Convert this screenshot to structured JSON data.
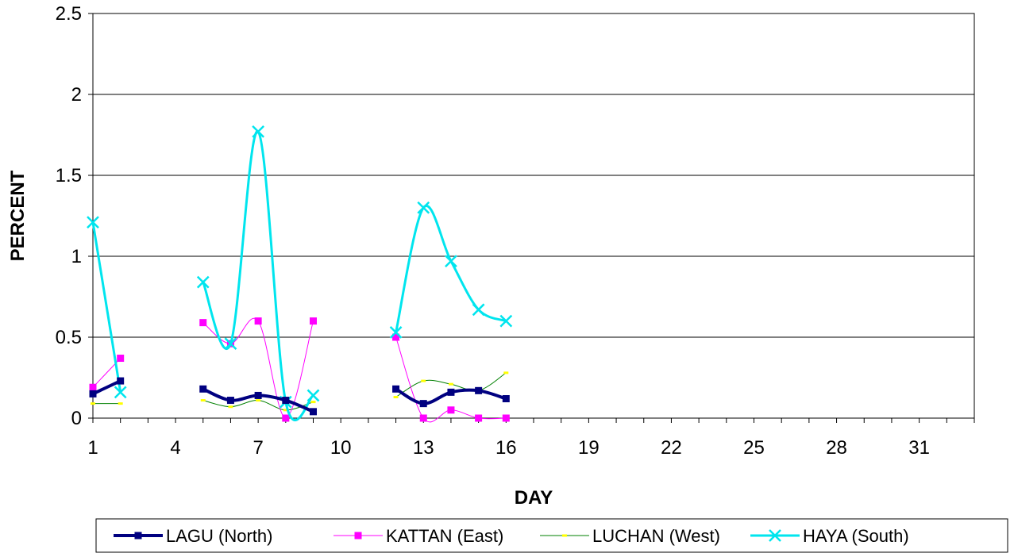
{
  "chart_data": {
    "type": "line",
    "title": "",
    "xlabel": "DAY",
    "ylabel": "PERCENT",
    "xlim": [
      1,
      33
    ],
    "ylim": [
      0,
      2.5
    ],
    "x_ticks": [
      1,
      4,
      7,
      10,
      13,
      16,
      19,
      22,
      25,
      28,
      31
    ],
    "y_ticks": [
      0,
      0.5,
      1,
      1.5,
      2,
      2.5
    ],
    "y_tick_labels": [
      "0",
      "0.5",
      "1",
      "1.5",
      "2",
      "2.5"
    ],
    "grid": "horizontal",
    "legend_position": "bottom",
    "series": [
      {
        "name": "LAGU (North)",
        "color": "#000080",
        "marker": "square",
        "line_width": 4,
        "segments": [
          [
            [
              1,
              0.15
            ],
            [
              2,
              0.23
            ]
          ],
          [
            [
              5,
              0.18
            ],
            [
              6,
              0.11
            ],
            [
              7,
              0.14
            ],
            [
              8,
              0.11
            ],
            [
              9,
              0.04
            ]
          ],
          [
            [
              12,
              0.18
            ],
            [
              13,
              0.09
            ],
            [
              14,
              0.16
            ],
            [
              15,
              0.17
            ],
            [
              16,
              0.12
            ]
          ]
        ]
      },
      {
        "name": "KATTAN (East)",
        "color": "#ff00ff",
        "marker": "square",
        "line_width": 1,
        "segments": [
          [
            [
              1,
              0.19
            ],
            [
              2,
              0.37
            ]
          ],
          [
            [
              5,
              0.59
            ],
            [
              6,
              0.46
            ],
            [
              7,
              0.6
            ],
            [
              8,
              0.0
            ],
            [
              9,
              0.6
            ]
          ],
          [
            [
              12,
              0.5
            ],
            [
              13,
              0.0
            ],
            [
              14,
              0.05
            ],
            [
              15,
              0.0
            ],
            [
              16,
              0.0
            ]
          ]
        ]
      },
      {
        "name": "LUCHAN (West)",
        "color": "#008000",
        "marker": "dash",
        "marker_color": "#ffff00",
        "line_width": 1,
        "segments": [
          [
            [
              1,
              0.09
            ],
            [
              2,
              0.09
            ]
          ],
          [
            [
              5,
              0.11
            ],
            [
              6,
              0.07
            ],
            [
              7,
              0.11
            ],
            [
              8,
              0.05
            ],
            [
              9,
              0.1
            ]
          ],
          [
            [
              12,
              0.13
            ],
            [
              13,
              0.23
            ],
            [
              14,
              0.21
            ],
            [
              15,
              0.17
            ],
            [
              16,
              0.28
            ]
          ]
        ]
      },
      {
        "name": "HAYA (South)",
        "color": "#00e5ee",
        "marker": "x",
        "line_width": 3,
        "segments": [
          [
            [
              1,
              1.21
            ],
            [
              2,
              0.16
            ]
          ],
          [
            [
              5,
              0.84
            ],
            [
              6,
              0.46
            ],
            [
              7,
              1.77
            ],
            [
              8,
              0.1
            ],
            [
              9,
              0.14
            ]
          ],
          [
            [
              12,
              0.53
            ],
            [
              13,
              1.3
            ],
            [
              14,
              0.97
            ],
            [
              15,
              0.67
            ],
            [
              16,
              0.6
            ]
          ]
        ]
      }
    ]
  }
}
